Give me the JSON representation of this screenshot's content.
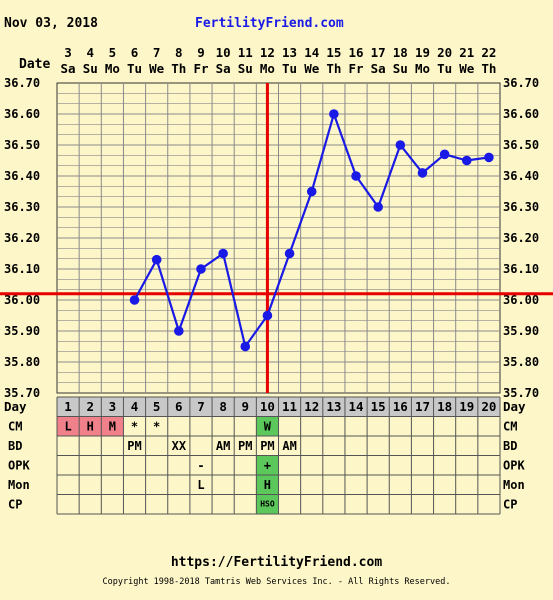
{
  "header": {
    "date": "Nov 03, 2018",
    "site": "FertilityFriend.com",
    "date_row_label": "Date"
  },
  "footer": {
    "url": "https://FertilityFriend.com",
    "copyright": "Copyright 1998-2018 Tamtris Web Services Inc. - All Rights Reserved."
  },
  "colors": {
    "background": "#fdf6c8",
    "grid": "#8a8a8a",
    "series": "#1a1ae6",
    "coverline": "#e60000",
    "ovulation_line": "#e60000",
    "day_row_bg": "#c8c8c8",
    "cm_period_bg": "#f0808a",
    "marker_green": "#5cc85c"
  },
  "chart_data": {
    "type": "line",
    "x": [
      "3",
      "4",
      "5",
      "6",
      "7",
      "8",
      "9",
      "10",
      "11",
      "12",
      "13",
      "14",
      "15",
      "16",
      "17",
      "18",
      "19",
      "20",
      "21",
      "22"
    ],
    "weekdays": [
      "Sa",
      "Su",
      "Mo",
      "Tu",
      "We",
      "Th",
      "Fr",
      "Sa",
      "Su",
      "Mo",
      "Tu",
      "We",
      "Th",
      "Fr",
      "Sa",
      "Su",
      "Mo",
      "Tu",
      "We",
      "Th"
    ],
    "cycle_days": [
      "1",
      "2",
      "3",
      "4",
      "5",
      "6",
      "7",
      "8",
      "9",
      "10",
      "11",
      "12",
      "13",
      "14",
      "15",
      "16",
      "17",
      "18",
      "19",
      "20"
    ],
    "series": [
      {
        "values": [
          null,
          null,
          null,
          36.0,
          36.13,
          35.9,
          36.1,
          36.15,
          35.85,
          35.95,
          36.15,
          36.35,
          36.6,
          36.4,
          36.3,
          36.5,
          36.41,
          36.47,
          36.45,
          36.46
        ]
      }
    ],
    "ylim": [
      35.7,
      36.7
    ],
    "yticks": [
      "35.70",
      "35.80",
      "35.90",
      "36.00",
      "36.10",
      "36.20",
      "36.30",
      "36.40",
      "36.50",
      "36.60",
      "36.70"
    ],
    "coverline": 36.02,
    "ovulation_day_index": 9,
    "grid": true
  },
  "table": {
    "day_label": "Day",
    "rows": [
      {
        "label": "CM",
        "cells": [
          "L",
          "H",
          "M",
          "*",
          "*",
          "",
          "",
          "",
          "",
          "W",
          "",
          "",
          "",
          "",
          "",
          "",
          "",
          "",
          "",
          ""
        ]
      },
      {
        "label": "BD",
        "cells": [
          "",
          "",
          "",
          "PM",
          "",
          "XX",
          "",
          "AM",
          "PM",
          "PM",
          "AM",
          "",
          "",
          "",
          "",
          "",
          "",
          "",
          "",
          ""
        ]
      },
      {
        "label": "OPK",
        "cells": [
          "",
          "",
          "",
          "",
          "",
          "",
          "-",
          "",
          "",
          "+",
          "",
          "",
          "",
          "",
          "",
          "",
          "",
          "",
          "",
          ""
        ]
      },
      {
        "label": "Mon",
        "cells": [
          "",
          "",
          "",
          "",
          "",
          "",
          "L",
          "",
          "",
          "H",
          "",
          "",
          "",
          "",
          "",
          "",
          "",
          "",
          "",
          ""
        ]
      },
      {
        "label": "CP",
        "cells": [
          "",
          "",
          "",
          "",
          "",
          "",
          "",
          "",
          "",
          "HSO",
          "",
          "",
          "",
          "",
          "",
          "",
          "",
          "",
          "",
          ""
        ]
      }
    ]
  }
}
